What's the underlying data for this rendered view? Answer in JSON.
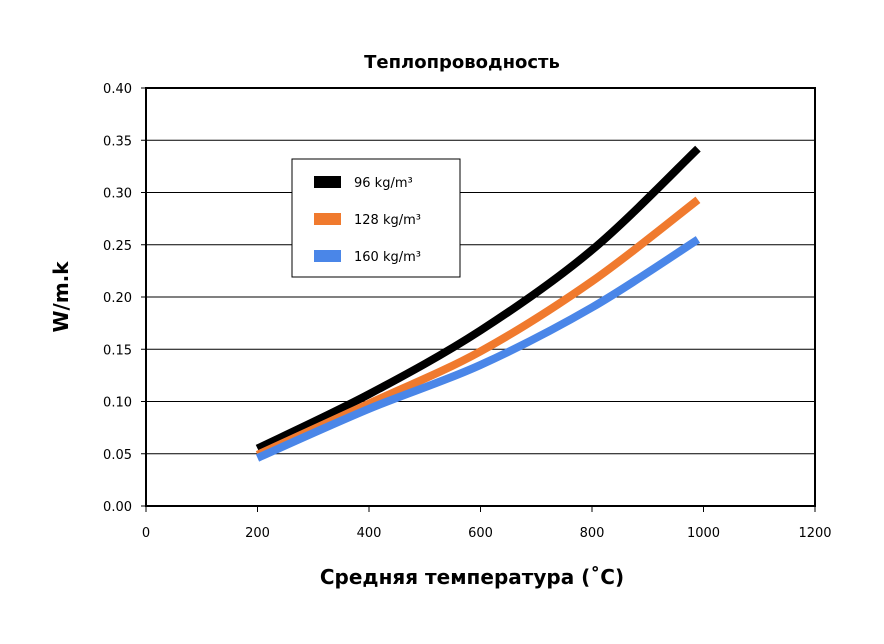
{
  "chart_data": {
    "type": "line",
    "title": "Теплопроводность",
    "xlabel": "Средняя температура (˚C)",
    "ylabel": "W/m.k",
    "xlim": [
      0,
      1200
    ],
    "ylim": [
      0,
      0.4
    ],
    "xticks": [
      "0",
      "200",
      "400",
      "600",
      "800",
      "1000",
      "1200"
    ],
    "yticks": [
      "0.00",
      "0.05",
      "0.10",
      "0.15",
      "0.20",
      "0.25",
      "0.30",
      "0.35",
      "0.40"
    ],
    "grid": "horizontal",
    "legend": "upper-left-inside",
    "x": [
      200,
      400,
      600,
      800,
      990
    ],
    "series": [
      {
        "name": "96 kg/m³",
        "color": "#000000",
        "values": [
          0.055,
          0.107,
          0.168,
          0.245,
          0.342
        ]
      },
      {
        "name": "128 kg/m³",
        "color": "#f07a2e",
        "values": [
          0.049,
          0.098,
          0.148,
          0.215,
          0.293
        ]
      },
      {
        "name": "160 kg/m³",
        "color": "#4a86e8",
        "values": [
          0.046,
          0.093,
          0.135,
          0.19,
          0.255
        ]
      }
    ]
  }
}
